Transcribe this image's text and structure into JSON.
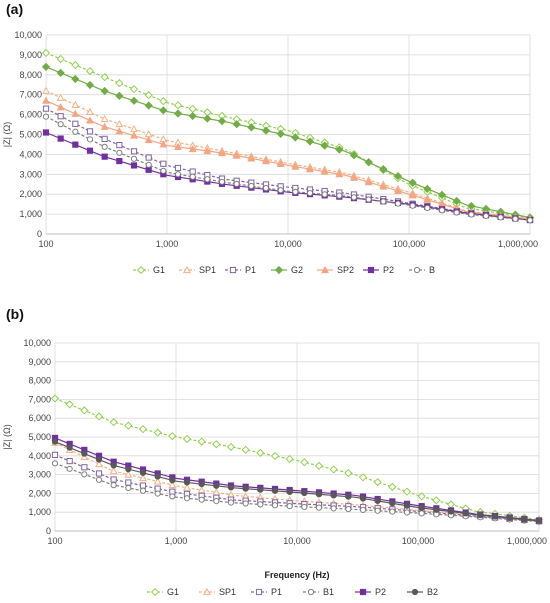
{
  "chart_data": [
    {
      "type": "line",
      "panel_label": "(a)",
      "xlabel": "",
      "ylabel": "|Z| (Ω)",
      "x_scale": "log",
      "xlim": [
        100,
        1000000
      ],
      "ylim": [
        0,
        10000
      ],
      "x_ticks": [
        "100",
        "1,000",
        "10,000",
        "100,000",
        "1,000,000"
      ],
      "y_ticks": [
        "0",
        "1,000",
        "2,000",
        "3,000",
        "4,000",
        "5,000",
        "6,000",
        "7,000",
        "8,000",
        "9,000",
        "10,000"
      ],
      "grid": true,
      "legend_position": "bottom",
      "series": [
        {
          "name": "G1",
          "color": "#92d050",
          "marker": "diamond",
          "filled": false,
          "dashed": true,
          "points": [
            [
              100,
              9100
            ],
            [
              300,
              7900
            ],
            [
              1000,
              6600
            ],
            [
              3000,
              5900
            ],
            [
              10000,
              5200
            ],
            [
              30000,
              4250
            ],
            [
              100000,
              2500
            ],
            [
              300000,
              1300
            ],
            [
              1000000,
              820
            ]
          ]
        },
        {
          "name": "SP1",
          "color": "#f4b183",
          "marker": "triangle",
          "filled": false,
          "dashed": true,
          "points": [
            [
              100,
              7200
            ],
            [
              300,
              5800
            ],
            [
              1000,
              4700
            ],
            [
              3000,
              4150
            ],
            [
              10000,
              3550
            ],
            [
              30000,
              3050
            ],
            [
              100000,
              2100
            ],
            [
              300000,
              1150
            ],
            [
              1000000,
              770
            ]
          ]
        },
        {
          "name": "P1",
          "color": "#8064a2",
          "marker": "square",
          "filled": false,
          "dashed": true,
          "points": [
            [
              100,
              6300
            ],
            [
              300,
              4800
            ],
            [
              1000,
              3450
            ],
            [
              3000,
              2750
            ],
            [
              10000,
              2350
            ],
            [
              30000,
              2050
            ],
            [
              100000,
              1550
            ],
            [
              300000,
              1080
            ],
            [
              1000000,
              720
            ]
          ]
        },
        {
          "name": "G2",
          "color": "#70ad47",
          "marker": "diamond",
          "filled": true,
          "dashed": false,
          "points": [
            [
              100,
              8400
            ],
            [
              300,
              7200
            ],
            [
              1000,
              6150
            ],
            [
              3000,
              5650
            ],
            [
              10000,
              4950
            ],
            [
              30000,
              4150
            ],
            [
              100000,
              2650
            ],
            [
              300000,
              1450
            ],
            [
              1000000,
              830
            ]
          ]
        },
        {
          "name": "SP2",
          "color": "#f4a582",
          "marker": "triangle",
          "filled": true,
          "dashed": false,
          "points": [
            [
              100,
              6700
            ],
            [
              300,
              5400
            ],
            [
              1000,
              4450
            ],
            [
              3000,
              4050
            ],
            [
              10000,
              3450
            ],
            [
              30000,
              2950
            ],
            [
              100000,
              2000
            ],
            [
              300000,
              1120
            ],
            [
              1000000,
              760
            ]
          ]
        },
        {
          "name": "P2",
          "color": "#7030a0",
          "marker": "square",
          "filled": true,
          "dashed": false,
          "points": [
            [
              100,
              5100
            ],
            [
              300,
              3900
            ],
            [
              1000,
              2950
            ],
            [
              3000,
              2500
            ],
            [
              10000,
              2100
            ],
            [
              30000,
              1850
            ],
            [
              100000,
              1500
            ],
            [
              300000,
              1050
            ],
            [
              1000000,
              700
            ]
          ]
        },
        {
          "name": "B",
          "color": "#7f7f7f",
          "marker": "circle",
          "filled": false,
          "dashed": true,
          "points": [
            [
              100,
              5900
            ],
            [
              300,
              4400
            ],
            [
              1000,
              3100
            ],
            [
              3000,
              2600
            ],
            [
              10000,
              2150
            ],
            [
              30000,
              1900
            ],
            [
              100000,
              1450
            ],
            [
              300000,
              1000
            ],
            [
              1000000,
              690
            ]
          ]
        }
      ]
    },
    {
      "type": "line",
      "panel_label": "(b)",
      "xlabel": "Frequency (Hz)",
      "ylabel": "|Z| (Ω)",
      "x_scale": "log",
      "xlim": [
        100,
        1000000
      ],
      "ylim": [
        0,
        10000
      ],
      "x_ticks": [
        "100",
        "1,000",
        "10,000",
        "100,000",
        "1,000,000"
      ],
      "y_ticks": [
        "0",
        "1,000",
        "2,000",
        "3,000",
        "4,000",
        "5,000",
        "6,000",
        "7,000",
        "8,000",
        "9,000",
        "10,000"
      ],
      "grid": true,
      "legend_position": "bottom",
      "series": [
        {
          "name": "G1",
          "color": "#92d050",
          "marker": "diamond",
          "filled": false,
          "dashed": true,
          "points": [
            [
              100,
              7050
            ],
            [
              300,
              5800
            ],
            [
              1000,
              5000
            ],
            [
              3000,
              4450
            ],
            [
              10000,
              3750
            ],
            [
              30000,
              3000
            ],
            [
              100000,
              1900
            ],
            [
              300000,
              1050
            ],
            [
              1000000,
              600
            ]
          ]
        },
        {
          "name": "SP1",
          "color": "#f4b183",
          "marker": "triangle",
          "filled": false,
          "dashed": true,
          "points": [
            [
              100,
              4700
            ],
            [
              300,
              3200
            ],
            [
              1000,
              2400
            ],
            [
              3000,
              1900
            ],
            [
              10000,
              1600
            ],
            [
              30000,
              1400
            ],
            [
              100000,
              1100
            ],
            [
              300000,
              850
            ],
            [
              1000000,
              540
            ]
          ]
        },
        {
          "name": "P1",
          "color": "#8064a2",
          "marker": "square",
          "filled": false,
          "dashed": true,
          "points": [
            [
              100,
              4050
            ],
            [
              300,
              2750
            ],
            [
              1000,
              2050
            ],
            [
              3000,
              1650
            ],
            [
              10000,
              1450
            ],
            [
              30000,
              1300
            ],
            [
              100000,
              1050
            ],
            [
              300000,
              800
            ],
            [
              1000000,
              520
            ]
          ]
        },
        {
          "name": "B1",
          "color": "#7f7f7f",
          "marker": "circle",
          "filled": false,
          "dashed": true,
          "points": [
            [
              100,
              3600
            ],
            [
              300,
              2450
            ],
            [
              1000,
              1800
            ],
            [
              3000,
              1500
            ],
            [
              10000,
              1300
            ],
            [
              30000,
              1150
            ],
            [
              100000,
              950
            ],
            [
              300000,
              750
            ],
            [
              1000000,
              500
            ]
          ]
        },
        {
          "name": "P2",
          "color": "#7030a0",
          "marker": "square",
          "filled": true,
          "dashed": false,
          "points": [
            [
              100,
              4950
            ],
            [
              300,
              3700
            ],
            [
              1000,
              2800
            ],
            [
              3000,
              2400
            ],
            [
              10000,
              2150
            ],
            [
              30000,
              1900
            ],
            [
              100000,
              1350
            ],
            [
              300000,
              900
            ],
            [
              1000000,
              560
            ]
          ]
        },
        {
          "name": "B2",
          "color": "#595959",
          "marker": "circle",
          "filled": true,
          "dashed": false,
          "points": [
            [
              100,
              4750
            ],
            [
              300,
              3500
            ],
            [
              1000,
              2650
            ],
            [
              3000,
              2300
            ],
            [
              10000,
              2050
            ],
            [
              30000,
              1800
            ],
            [
              100000,
              1250
            ],
            [
              300000,
              870
            ],
            [
              1000000,
              540
            ]
          ]
        }
      ]
    }
  ]
}
